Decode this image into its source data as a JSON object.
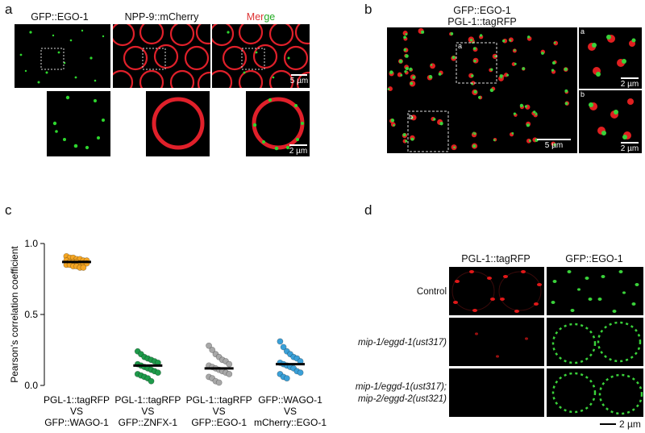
{
  "figure": {
    "panel_a": {
      "label": "a",
      "titles": [
        "GFP::EGO-1",
        "NPP-9::mCherry"
      ],
      "merge_title_part1": "Mer",
      "merge_title_part2": "ge",
      "scale_top": "5 µm",
      "scale_bottom": "2 µm"
    },
    "panel_b": {
      "label": "b",
      "title_line1": "GFP::EGO-1",
      "title_line2": "PGL-1::tagRFP",
      "inset_a": "a",
      "inset_b": "b",
      "scale_main": "5 µm",
      "scale_inset_a": "2 µm",
      "scale_inset_b": "2 µm"
    },
    "panel_d": {
      "label": "d",
      "col1": "PGL-1::tagRFP",
      "col2": "GFP::EGO-1",
      "row1": "Control",
      "row2": "mip-1/eggd-1(ust317)",
      "row3_line1": "mip-1/eggd-1(ust317);",
      "row3_line2": "mip-2/eggd-2(ust321)",
      "scale": "2 µm"
    }
  },
  "chart_data": {
    "label": "c",
    "type": "scatter",
    "ylabel": "Pearson's correlation coefficient",
    "ylim": [
      0,
      1.0
    ],
    "yticks": [
      "0.0",
      "0.5",
      "1.0"
    ],
    "categories": [
      [
        "PGL-1::tagRFP",
        "VS",
        "GFP::WAGO-1"
      ],
      [
        "PGL-1::tagRFP",
        "VS",
        "GFP::ZNFX-1"
      ],
      [
        "PGL-1::tagRFP",
        "VS",
        "GFP::EGO-1"
      ],
      [
        "GFP::WAGO-1",
        "VS",
        "mCherry::EGO-1"
      ]
    ],
    "colors": [
      "#f5a623",
      "#1e9a4a",
      "#a8a8a8",
      "#3aa0d8"
    ],
    "means": [
      0.87,
      0.14,
      0.12,
      0.15
    ],
    "points": [
      [
        0.91,
        0.9,
        0.9,
        0.89,
        0.89,
        0.88,
        0.88,
        0.88,
        0.87,
        0.87,
        0.87,
        0.86,
        0.86,
        0.86,
        0.85,
        0.85,
        0.84,
        0.84,
        0.83,
        0.83
      ],
      [
        0.24,
        0.22,
        0.2,
        0.19,
        0.18,
        0.17,
        0.16,
        0.15,
        0.14,
        0.13,
        0.12,
        0.11,
        0.1,
        0.09,
        0.08,
        0.07,
        0.06,
        0.05,
        0.03
      ],
      [
        0.28,
        0.25,
        0.22,
        0.2,
        0.18,
        0.17,
        0.15,
        0.14,
        0.13,
        0.12,
        0.11,
        0.1,
        0.09,
        0.08,
        0.06,
        0.05,
        0.03,
        0.02
      ],
      [
        0.31,
        0.27,
        0.24,
        0.22,
        0.2,
        0.19,
        0.17,
        0.16,
        0.15,
        0.14,
        0.13,
        0.12,
        0.1,
        0.09,
        0.08,
        0.06,
        0.05
      ]
    ]
  }
}
